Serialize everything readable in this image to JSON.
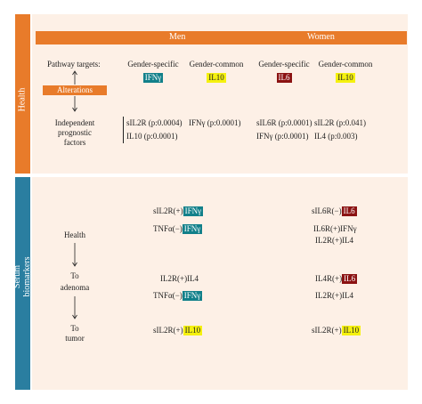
{
  "side": {
    "health": "Health",
    "serum_line1": "Serum",
    "serum_line2": "biomarkers"
  },
  "header": {
    "men": "Men",
    "women": "Women"
  },
  "top": {
    "pathway": "Pathway targets:",
    "alterations": "Alterations",
    "indep1": "Independent",
    "indep2": "prognostic",
    "indep3": "factors",
    "men_specific": "Gender-specific",
    "men_common": "Gender-common",
    "women_specific": "Gender-specific",
    "women_common": "Gender-common",
    "badge_men_specific": "IFNγ",
    "badge_men_common": "IL10",
    "badge_women_specific": "IL6",
    "badge_women_common": "IL10",
    "men_f1": "sIL2R (p:0.0004)",
    "men_f2": "IL10 (p:0.0001)",
    "men_f3": "IFNγ (p:0.0001)",
    "women_f1": "sIL6R (p:0.0001)",
    "women_f2": "IFNγ (p:0.0001)",
    "women_f3": "sIL2R (p:0.041)",
    "women_f4": "IL4 (p:0.003)"
  },
  "bottom": {
    "stage_health": "Health",
    "stage_to1": "To",
    "stage_adenoma": "adenoma",
    "stage_to2": "To",
    "stage_tumor": "tumor",
    "men": {
      "r1_pre": "sIL2R(+)",
      "r1_badge": "IFNγ",
      "r2_pre": "TNFα(−)",
      "r2_badge": "IFNγ",
      "r3": "IL2R(+)IL4",
      "r4_pre": "TNFα(−)",
      "r4_badge": "IFNγ",
      "r5_pre": "sIL2R(+)",
      "r5_badge": "IL10"
    },
    "women": {
      "r1_pre": "sIL6R(−)",
      "r1_badge": "IL6",
      "r2": "IL6R(+)IFNγ",
      "r3": "IL2R(+)IL4",
      "r4_pre": "IL4R(+)",
      "r4_badge": "IL6",
      "r5": "IL2R(+)IL4",
      "r6_pre": "sIL2R(+)",
      "r6_badge": "IL10"
    }
  },
  "colors": {
    "orange": "#e87b2a",
    "blue": "#2a7ea0",
    "teal": "#12808a",
    "yellow": "#f5f10f",
    "maroon": "#8b1212",
    "panel": "#fdf0e6"
  }
}
